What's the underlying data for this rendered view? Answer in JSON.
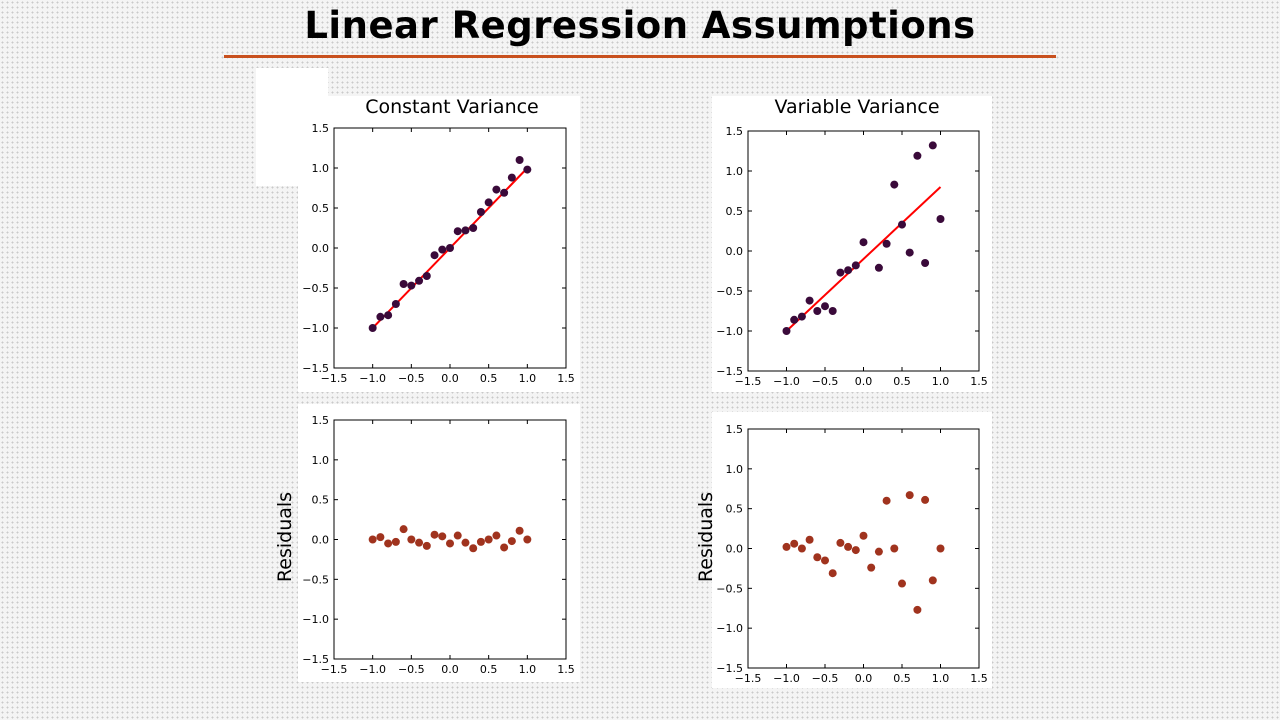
{
  "slide": {
    "title": "Linear Regression Assumptions",
    "accent_color": "#c8501e"
  },
  "chart_data": [
    {
      "id": "constant-fit",
      "type": "scatter",
      "title": "Constant Variance",
      "xlabel": "",
      "ylabel": "",
      "xlim": [
        -1.5,
        1.5
      ],
      "ylim": [
        -1.5,
        1.5
      ],
      "xticks": [
        -1.5,
        -1.0,
        -0.5,
        0.0,
        0.5,
        1.0,
        1.5
      ],
      "yticks": [
        -1.5,
        -1.0,
        -0.5,
        0.0,
        0.5,
        1.0,
        1.5
      ],
      "xtick_labels": [
        "−1.5",
        "−1.0",
        "−0.5",
        "0.0",
        "0.5",
        "1.0",
        "1.5"
      ],
      "ytick_labels": [
        "−1.5",
        "−1.0",
        "−0.5",
        "0.0",
        "0.5",
        "1.0",
        "1.5"
      ],
      "grid": false,
      "point_color": "#3a0a3a",
      "line_color": "#ff0000",
      "x": [
        -1.0,
        -0.9,
        -0.8,
        -0.7,
        -0.6,
        -0.5,
        -0.4,
        -0.3,
        -0.2,
        -0.1,
        0.0,
        0.1,
        0.2,
        0.3,
        0.4,
        0.5,
        0.6,
        0.7,
        0.8,
        0.9,
        1.0
      ],
      "y": [
        -1.0,
        -0.86,
        -0.84,
        -0.7,
        -0.45,
        -0.47,
        -0.41,
        -0.35,
        -0.09,
        -0.02,
        0.0,
        0.21,
        0.22,
        0.25,
        0.45,
        0.57,
        0.73,
        0.69,
        0.88,
        1.1,
        0.98
      ],
      "fit_line": {
        "x": [
          -1.0,
          1.0
        ],
        "y": [
          -1.0,
          1.0
        ]
      }
    },
    {
      "id": "variable-fit",
      "type": "scatter",
      "title": "Variable Variance",
      "xlabel": "",
      "ylabel": "",
      "xlim": [
        -1.5,
        1.5
      ],
      "ylim": [
        -1.5,
        1.5
      ],
      "xticks": [
        -1.5,
        -1.0,
        -0.5,
        0.0,
        0.5,
        1.0,
        1.5
      ],
      "yticks": [
        -1.5,
        -1.0,
        -0.5,
        0.0,
        0.5,
        1.0,
        1.5
      ],
      "xtick_labels": [
        "−1.5",
        "−1.0",
        "−0.5",
        "0.0",
        "0.5",
        "1.0",
        "1.5"
      ],
      "ytick_labels": [
        "−1.5",
        "−1.0",
        "−0.5",
        "0.0",
        "0.5",
        "1.0",
        "1.5"
      ],
      "grid": false,
      "point_color": "#3a0a3a",
      "line_color": "#ff0000",
      "x": [
        -1.0,
        -0.9,
        -0.8,
        -0.7,
        -0.6,
        -0.5,
        -0.4,
        -0.3,
        -0.2,
        -0.1,
        0.0,
        0.2,
        0.3,
        0.4,
        0.5,
        0.6,
        0.7,
        0.8,
        0.9,
        1.0
      ],
      "y": [
        -1.0,
        -0.86,
        -0.82,
        -0.62,
        -0.75,
        -0.69,
        -0.75,
        -0.27,
        -0.24,
        -0.18,
        0.11,
        -0.21,
        0.09,
        0.83,
        0.33,
        -0.02,
        1.19,
        -0.15,
        1.32,
        0.4
      ],
      "fit_line": {
        "x": [
          -1.0,
          1.0
        ],
        "y": [
          -1.0,
          0.8
        ]
      }
    },
    {
      "id": "constant-residuals",
      "type": "scatter",
      "title": "",
      "xlabel": "",
      "ylabel": "Residuals",
      "xlim": [
        -1.5,
        1.5
      ],
      "ylim": [
        -1.5,
        1.5
      ],
      "xticks": [
        -1.5,
        -1.0,
        -0.5,
        0.0,
        0.5,
        1.0,
        1.5
      ],
      "yticks": [
        -1.5,
        -1.0,
        -0.5,
        0.0,
        0.5,
        1.0,
        1.5
      ],
      "xtick_labels": [
        "−1.5",
        "−1.0",
        "−0.5",
        "0.0",
        "0.5",
        "1.0",
        "1.5"
      ],
      "ytick_labels": [
        "−1.5",
        "−1.0",
        "−0.5",
        "0.0",
        "0.5",
        "1.0",
        "1.5"
      ],
      "grid": false,
      "point_color": "#a0331e",
      "x": [
        -1.0,
        -0.9,
        -0.8,
        -0.7,
        -0.6,
        -0.5,
        -0.4,
        -0.3,
        -0.2,
        -0.1,
        0.0,
        0.1,
        0.2,
        0.3,
        0.4,
        0.5,
        0.6,
        0.7,
        0.8,
        0.9,
        1.0
      ],
      "y": [
        0.0,
        0.03,
        -0.05,
        -0.03,
        0.13,
        0.0,
        -0.04,
        -0.08,
        0.06,
        0.04,
        -0.05,
        0.05,
        -0.04,
        -0.11,
        -0.03,
        0.0,
        0.05,
        -0.1,
        -0.02,
        0.11,
        0.0
      ]
    },
    {
      "id": "variable-residuals",
      "type": "scatter",
      "title": "",
      "xlabel": "",
      "ylabel": "Residuals",
      "xlim": [
        -1.5,
        1.5
      ],
      "ylim": [
        -1.5,
        1.5
      ],
      "xticks": [
        -1.5,
        -1.0,
        -0.5,
        0.0,
        0.5,
        1.0,
        1.5
      ],
      "yticks": [
        -1.5,
        -1.0,
        -0.5,
        0.0,
        0.5,
        1.0,
        1.5
      ],
      "xtick_labels": [
        "−1.5",
        "−1.0",
        "−0.5",
        "0.0",
        "0.5",
        "1.0",
        "1.5"
      ],
      "ytick_labels": [
        "−1.5",
        "−1.0",
        "−0.5",
        "0.0",
        "0.5",
        "1.0",
        "1.5"
      ],
      "grid": false,
      "point_color": "#a0331e",
      "x": [
        -1.0,
        -0.9,
        -0.8,
        -0.7,
        -0.6,
        -0.5,
        -0.4,
        -0.3,
        -0.2,
        -0.1,
        0.0,
        0.1,
        0.2,
        0.3,
        0.4,
        0.5,
        0.6,
        0.7,
        0.8,
        0.9,
        1.0
      ],
      "y": [
        0.02,
        0.06,
        0.0,
        0.11,
        -0.11,
        -0.15,
        -0.31,
        0.07,
        0.02,
        -0.02,
        0.16,
        -0.24,
        -0.04,
        0.6,
        0.0,
        -0.44,
        0.67,
        -0.77,
        0.61,
        -0.4,
        0.0
      ]
    }
  ]
}
